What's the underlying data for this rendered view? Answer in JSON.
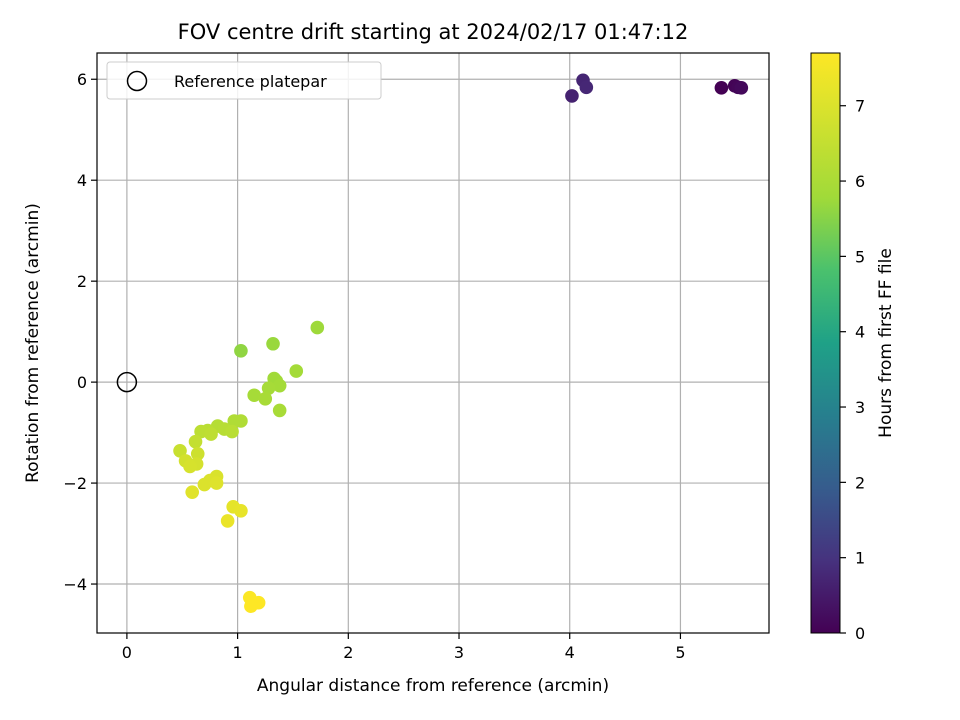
{
  "chart_data": {
    "type": "scatter",
    "title": "FOV centre drift starting at 2024/02/17 01:47:12",
    "xlabel": "Angular distance from reference (arcmin)",
    "ylabel": "Rotation from reference (arcmin)",
    "xlim": [
      -0.27,
      5.8
    ],
    "ylim": [
      -4.97,
      6.52
    ],
    "x_ticks": [
      "0",
      "1",
      "2",
      "3",
      "4",
      "5"
    ],
    "y_ticks": [
      "−4",
      "−2",
      "0",
      "2",
      "4",
      "6"
    ],
    "grid": true,
    "legend": {
      "placement": "top-left",
      "entries": [
        "Reference platepar"
      ]
    },
    "reference_point": {
      "x": 0,
      "y": 0,
      "label": "Reference platepar"
    },
    "colorbar": {
      "label": "Hours from first FF file",
      "range": [
        0,
        7.7
      ],
      "ticks": [
        "0",
        "1",
        "2",
        "3",
        "4",
        "5",
        "6",
        "7"
      ],
      "colormap": "viridis"
    },
    "points": [
      {
        "x": 5.37,
        "y": 5.83,
        "c": 0.0
      },
      {
        "x": 5.49,
        "y": 5.87,
        "c": 0.05
      },
      {
        "x": 5.52,
        "y": 5.84,
        "c": 0.1
      },
      {
        "x": 5.55,
        "y": 5.83,
        "c": 0.15
      },
      {
        "x": 4.02,
        "y": 5.67,
        "c": 0.65
      },
      {
        "x": 4.12,
        "y": 5.98,
        "c": 0.7
      },
      {
        "x": 4.15,
        "y": 5.84,
        "c": 0.75
      },
      {
        "x": 1.72,
        "y": 1.08,
        "c": 5.75
      },
      {
        "x": 1.03,
        "y": 0.62,
        "c": 5.6
      },
      {
        "x": 1.32,
        "y": 0.76,
        "c": 5.7
      },
      {
        "x": 1.53,
        "y": 0.22,
        "c": 5.85
      },
      {
        "x": 1.33,
        "y": 0.07,
        "c": 5.8
      },
      {
        "x": 1.35,
        "y": 0.02,
        "c": 5.8
      },
      {
        "x": 1.38,
        "y": -0.07,
        "c": 5.85
      },
      {
        "x": 1.28,
        "y": -0.12,
        "c": 5.9
      },
      {
        "x": 1.15,
        "y": -0.26,
        "c": 5.9
      },
      {
        "x": 1.25,
        "y": -0.33,
        "c": 5.95
      },
      {
        "x": 1.38,
        "y": -0.56,
        "c": 5.95
      },
      {
        "x": 0.97,
        "y": -0.77,
        "c": 6.1
      },
      {
        "x": 1.03,
        "y": -0.77,
        "c": 6.1
      },
      {
        "x": 0.82,
        "y": -0.87,
        "c": 6.2
      },
      {
        "x": 0.88,
        "y": -0.93,
        "c": 6.25
      },
      {
        "x": 0.95,
        "y": -0.98,
        "c": 6.3
      },
      {
        "x": 0.73,
        "y": -0.96,
        "c": 6.3
      },
      {
        "x": 0.67,
        "y": -0.98,
        "c": 6.35
      },
      {
        "x": 0.76,
        "y": -1.03,
        "c": 6.4
      },
      {
        "x": 0.62,
        "y": -1.18,
        "c": 6.5
      },
      {
        "x": 0.48,
        "y": -1.36,
        "c": 6.6
      },
      {
        "x": 0.64,
        "y": -1.42,
        "c": 6.7
      },
      {
        "x": 0.53,
        "y": -1.56,
        "c": 6.8
      },
      {
        "x": 0.63,
        "y": -1.62,
        "c": 6.85
      },
      {
        "x": 0.57,
        "y": -1.67,
        "c": 6.9
      },
      {
        "x": 0.81,
        "y": -1.87,
        "c": 6.95
      },
      {
        "x": 0.75,
        "y": -1.95,
        "c": 7.0
      },
      {
        "x": 0.7,
        "y": -2.03,
        "c": 7.0
      },
      {
        "x": 0.81,
        "y": -2.0,
        "c": 7.05
      },
      {
        "x": 0.59,
        "y": -2.18,
        "c": 7.1
      },
      {
        "x": 0.96,
        "y": -2.47,
        "c": 7.2
      },
      {
        "x": 1.03,
        "y": -2.55,
        "c": 7.25
      },
      {
        "x": 0.91,
        "y": -2.75,
        "c": 7.3
      },
      {
        "x": 1.11,
        "y": -4.27,
        "c": 7.65
      },
      {
        "x": 1.19,
        "y": -4.37,
        "c": 7.7
      },
      {
        "x": 1.12,
        "y": -4.44,
        "c": 7.7
      }
    ]
  }
}
